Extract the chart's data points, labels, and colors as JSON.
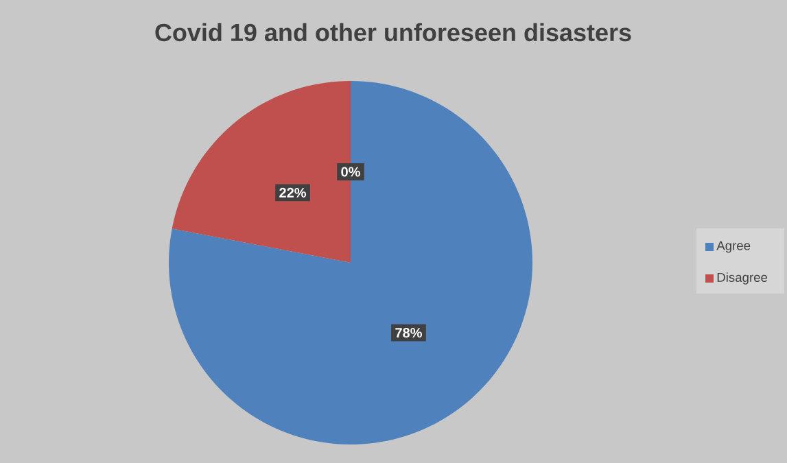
{
  "chart_data": {
    "type": "pie",
    "title": "Covid 19 and other unforeseen disasters",
    "categories": [
      "Agree",
      "Disagree",
      null
    ],
    "values": [
      78,
      22,
      0
    ],
    "colors": [
      "#4f81bd",
      "#c0504d",
      "#9bbb59"
    ],
    "value_labels": [
      "78%",
      "22%",
      "0%"
    ],
    "legend": "right"
  }
}
